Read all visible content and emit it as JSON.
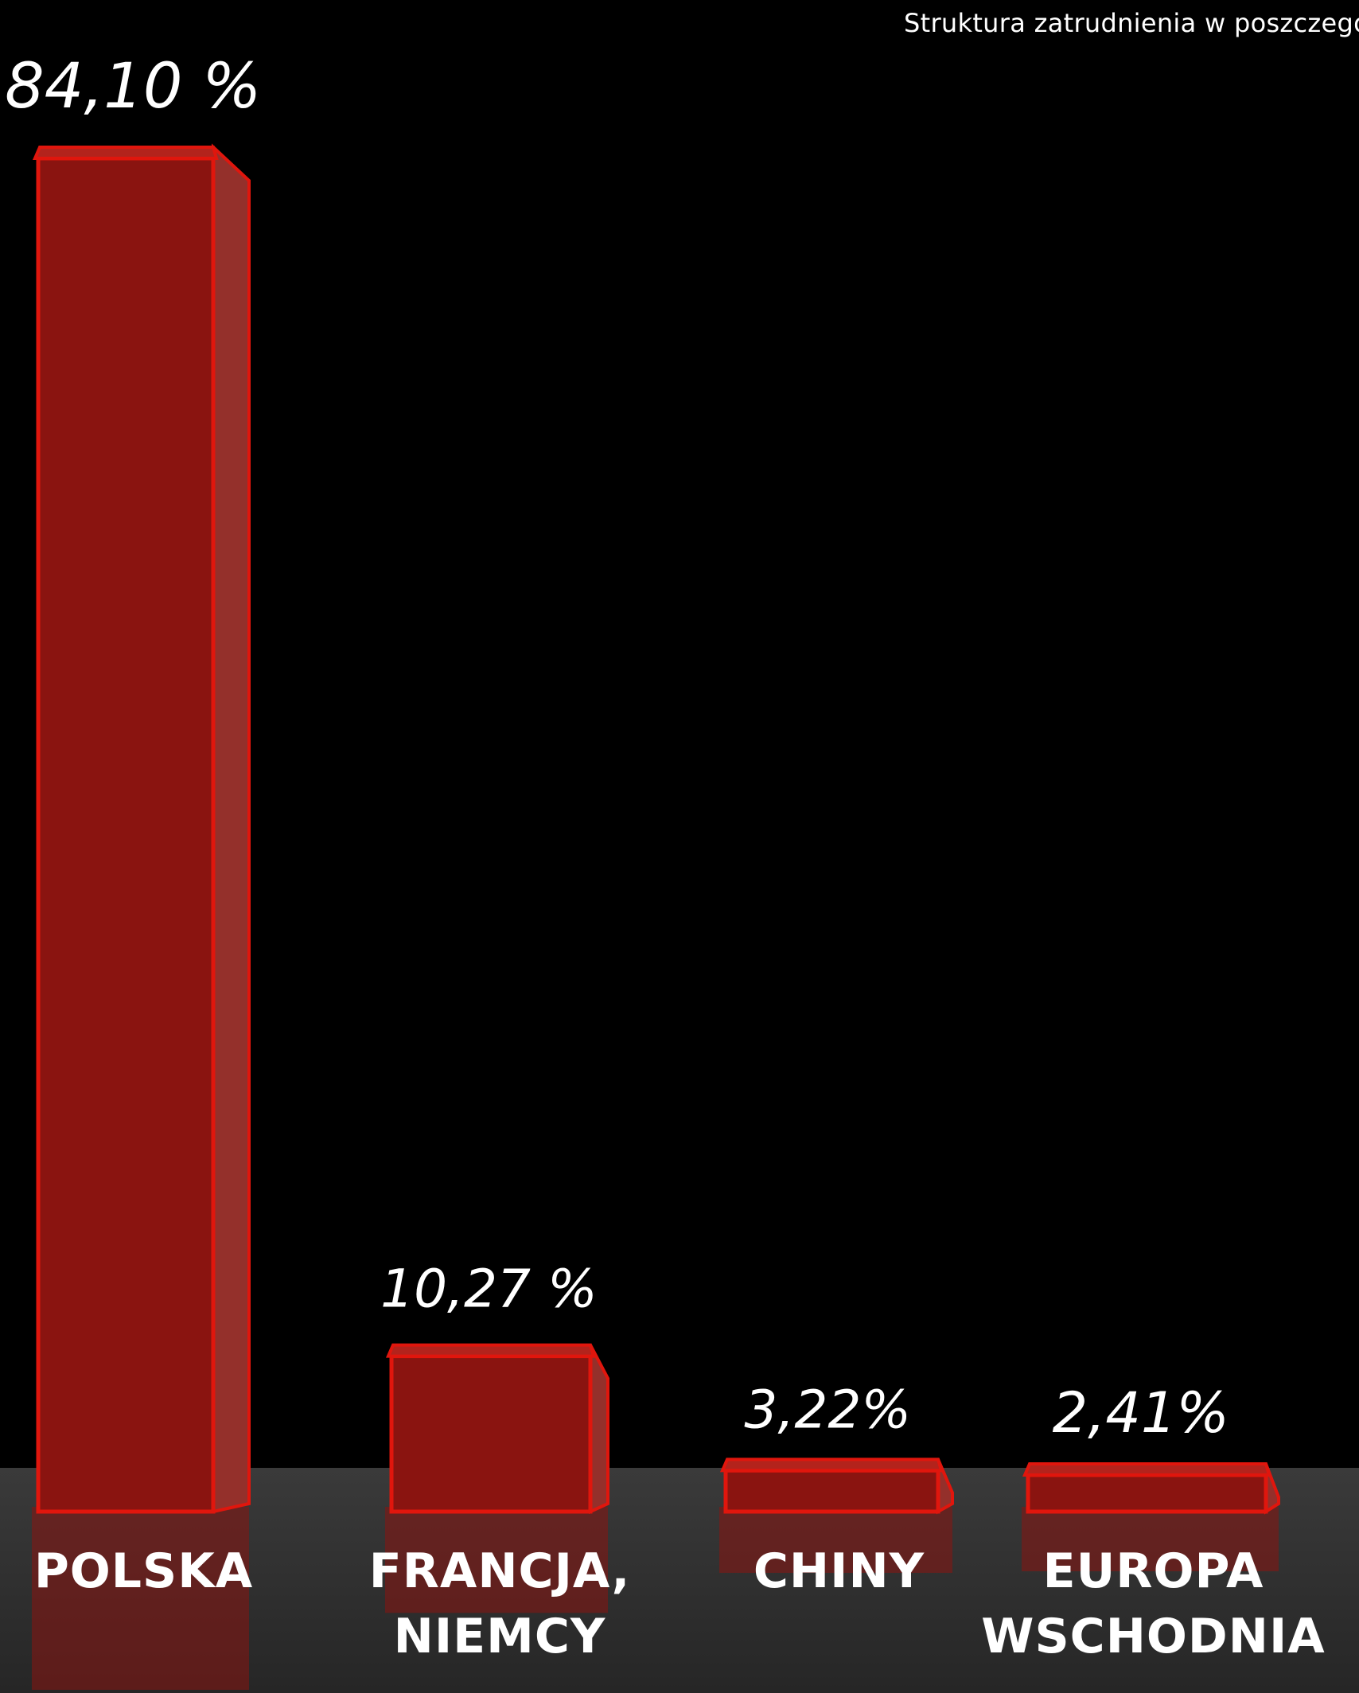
{
  "subtitle": "Struktura zatrudnienia w poszczególnyc",
  "colors": {
    "background": "#000000",
    "floor": "#2f2f2f",
    "bar_front": "#8a1410",
    "bar_side": "#94302b",
    "bar_outline": "#e0160d",
    "text": "#ffffff"
  },
  "chart_data": {
    "type": "bar",
    "title": "",
    "xlabel": "",
    "ylabel": "",
    "categories": [
      [
        "POLSKA"
      ],
      [
        "FRANCJA,",
        "NIEMCY"
      ],
      [
        "CHINY"
      ],
      [
        "EUROPA",
        "WSCHODNIA"
      ]
    ],
    "values": [
      84.1,
      10.27,
      3.22,
      2.41
    ],
    "value_labels": [
      "84,10 %",
      "10,27 %",
      "3,22%",
      "2,41%"
    ],
    "ylim": [
      0,
      84.1
    ],
    "grid": false,
    "legend": "none"
  }
}
